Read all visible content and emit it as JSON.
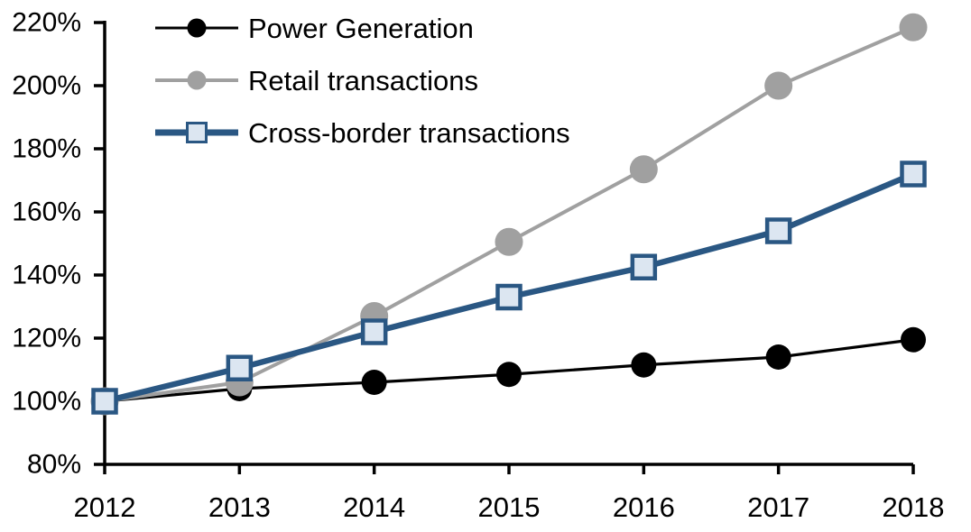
{
  "chart_data": {
    "type": "line",
    "title": "",
    "xlabel": "",
    "ylabel": "",
    "unit": "percent (index, 2012 = 100%)",
    "grid": false,
    "legend_position": "top-left-inside",
    "x_tick_labels": [
      "2012",
      "2013",
      "2014",
      "2015",
      "2016",
      "2017",
      "2018"
    ],
    "y_ticks": [
      {
        "label": "80%",
        "value": 80
      },
      {
        "label": "100%",
        "value": 100
      },
      {
        "label": "120%",
        "value": 120
      },
      {
        "label": "140%",
        "value": 140
      },
      {
        "label": "160%",
        "value": 160
      },
      {
        "label": "180%",
        "value": 180
      },
      {
        "label": "200%",
        "value": 200
      },
      {
        "label": "220%",
        "value": 220
      }
    ],
    "ylim": [
      80,
      220
    ],
    "series": [
      {
        "name": "Power Generation",
        "marker": "circle",
        "color": "#000000",
        "marker_fill": "#000000",
        "values": [
          100,
          104,
          106,
          108.5,
          111.5,
          114,
          119.5
        ]
      },
      {
        "name": "Retail transactions",
        "marker": "circle",
        "color": "#A0A0A0",
        "marker_fill": "#A0A0A0",
        "values": [
          100,
          106,
          127,
          150.5,
          173.5,
          200,
          218.5
        ]
      },
      {
        "name": "Cross-border transactions",
        "marker": "square",
        "color": "#2A5783",
        "marker_fill": "#DCE6F1",
        "values": [
          100,
          110.5,
          122,
          133,
          142.5,
          154,
          172
        ]
      }
    ]
  },
  "colors": {
    "background": "#FFFFFF",
    "axis": "#000000",
    "text": "#000000"
  }
}
